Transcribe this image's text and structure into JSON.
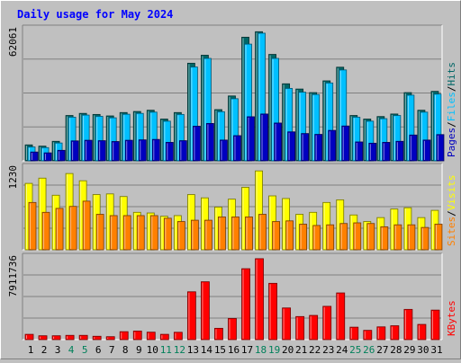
{
  "chart_data": {
    "type": "bar",
    "title": "Daily usage for May 2024",
    "categories": [
      "1",
      "2",
      "3",
      "4",
      "5",
      "6",
      "7",
      "8",
      "9",
      "10",
      "11",
      "12",
      "13",
      "14",
      "15",
      "16",
      "17",
      "18",
      "19",
      "20",
      "21",
      "22",
      "23",
      "24",
      "25",
      "26",
      "27",
      "28",
      "29",
      "30",
      "31"
    ],
    "weekend_days": [
      "4",
      "5",
      "11",
      "12",
      "18",
      "19",
      "25",
      "26"
    ],
    "panels": [
      {
        "name": "pages-files-hits",
        "ymax_label": "62061",
        "ylim": [
          0,
          62061
        ],
        "legend": [
          "Pages",
          "Files",
          "Hits"
        ],
        "series": [
          {
            "name": "Hits",
            "color": "#006666",
            "values": [
              7600,
              7000,
              9300,
              21600,
              22600,
              22100,
              21400,
              23000,
              23500,
              24100,
              19900,
              23000,
              46500,
              50300,
              24400,
              30900,
              58900,
              61500,
              50700,
              36700,
              34200,
              32500,
              38100,
              44600,
              21600,
              19900,
              21100,
              22300,
              32500,
              24100,
              33100
            ]
          },
          {
            "name": "Files",
            "color": "#00c0ff",
            "values": [
              6600,
              6300,
              8500,
              20800,
              21800,
              21200,
              20500,
              22200,
              22600,
              23200,
              18900,
              22100,
              44700,
              48800,
              23400,
              29600,
              55600,
              60800,
              48800,
              34500,
              32700,
              31600,
              37100,
              43300,
              20800,
              18900,
              20100,
              21600,
              31300,
              23200,
              31800
            ]
          },
          {
            "name": "Pages",
            "color": "#0000c0",
            "values": [
              4200,
              3800,
              5000,
              9500,
              9800,
              9600,
              9200,
              9800,
              10000,
              10200,
              8800,
              9600,
              16500,
              17800,
              9900,
              12000,
              21000,
              22300,
              18000,
              13800,
              13000,
              12600,
              14500,
              16600,
              9000,
              8400,
              8800,
              9300,
              12300,
              9900,
              12500
            ]
          }
        ]
      },
      {
        "name": "visits-sites",
        "ymax_label": "1230",
        "ylim": [
          0,
          1230
        ],
        "legend": [
          "Sites",
          "Visits"
        ],
        "series": [
          {
            "name": "Visits",
            "color": "#ffff00",
            "values": [
              1010,
              1090,
              830,
              1160,
              1050,
              840,
              850,
              810,
              570,
              560,
              510,
              520,
              840,
              790,
              650,
              770,
              950,
              1200,
              820,
              780,
              540,
              570,
              720,
              760,
              530,
              430,
              490,
              620,
              640,
              490,
              600
            ]
          },
          {
            "name": "Sites",
            "color": "#ff8000",
            "values": [
              720,
              570,
              630,
              660,
              740,
              540,
              520,
              520,
              520,
              520,
              480,
              430,
              450,
              450,
              500,
              500,
              500,
              540,
              430,
              440,
              390,
              370,
              380,
              400,
              410,
              400,
              350,
              380,
              380,
              340,
              390
            ]
          }
        ]
      },
      {
        "name": "kbytes",
        "ymax_label": "7911736",
        "ylim": [
          0,
          7911736
        ],
        "legend": [
          "KBytes"
        ],
        "series": [
          {
            "name": "KBytes",
            "color": "#ff0000",
            "values": [
              520000,
              380000,
              380000,
              420000,
              420000,
              330000,
              290000,
              780000,
              840000,
              730000,
              520000,
              720000,
              4680000,
              5660000,
              1110000,
              2070000,
              6940000,
              7920000,
              5510000,
              3100000,
              2260000,
              2370000,
              3260000,
              4570000,
              1220000,
              910000,
              1250000,
              1360000,
              2960000,
              1490000,
              2890000
            ]
          }
        ]
      }
    ]
  }
}
